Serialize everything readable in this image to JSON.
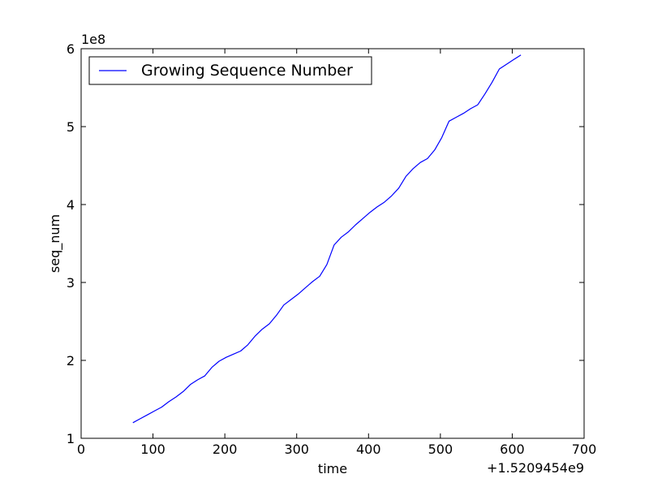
{
  "chart_data": {
    "type": "line",
    "title": "",
    "xlabel": "time",
    "ylabel": "seq_num",
    "x_offset_label": "+1.5209454e9",
    "y_scale_label": "1e8",
    "xlim": [
      0,
      700
    ],
    "ylim": [
      1,
      6
    ],
    "xticks": [
      0,
      100,
      200,
      300,
      400,
      500,
      600,
      700
    ],
    "yticks": [
      1,
      2,
      3,
      4,
      5,
      6
    ],
    "grid": false,
    "legend_position": "upper-left",
    "series": [
      {
        "name": "Growing Sequence Number",
        "color": "#0000ff",
        "x": [
          72,
          82,
          92,
          102,
          112,
          122,
          132,
          142,
          152,
          162,
          172,
          182,
          192,
          202,
          212,
          222,
          232,
          242,
          252,
          262,
          272,
          282,
          292,
          302,
          312,
          322,
          332,
          342,
          352,
          362,
          372,
          382,
          392,
          402,
          412,
          422,
          432,
          442,
          452,
          462,
          472,
          482,
          492,
          502,
          512,
          522,
          532,
          542,
          552,
          562,
          572,
          582,
          592,
          602,
          612
        ],
        "y": [
          1.2,
          1.25,
          1.3,
          1.35,
          1.4,
          1.47,
          1.53,
          1.6,
          1.69,
          1.75,
          1.8,
          1.91,
          1.99,
          2.04,
          2.08,
          2.12,
          2.2,
          2.31,
          2.4,
          2.47,
          2.58,
          2.71,
          2.78,
          2.85,
          2.93,
          3.01,
          3.08,
          3.23,
          3.48,
          3.58,
          3.65,
          3.74,
          3.82,
          3.9,
          3.97,
          4.03,
          4.11,
          4.21,
          4.36,
          4.46,
          4.54,
          4.59,
          4.7,
          4.86,
          5.07,
          5.12,
          5.17,
          5.23,
          5.28,
          5.42,
          5.57,
          5.74,
          5.8,
          5.86,
          5.92
        ]
      }
    ]
  }
}
